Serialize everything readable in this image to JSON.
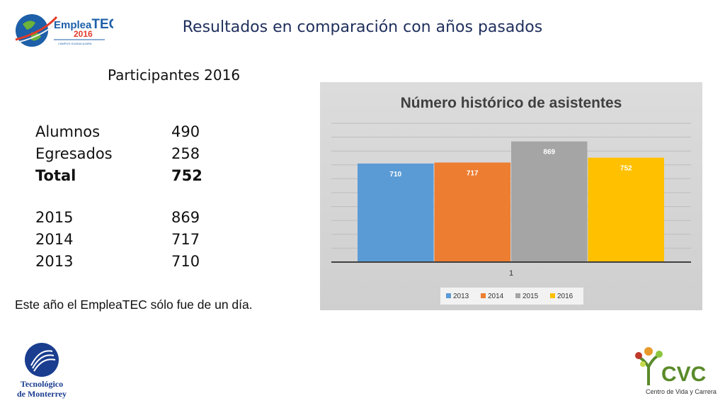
{
  "slide": {
    "title": "Resultados en comparación con años pasados",
    "subtitle": "Participantes 2016",
    "stats": [
      {
        "label": "Alumnos",
        "value": "490",
        "bold": false
      },
      {
        "label": "Egresados",
        "value": "258",
        "bold": false
      },
      {
        "label": "Total",
        "value": "752",
        "bold": true
      }
    ],
    "history": [
      {
        "label": "2015",
        "value": "869"
      },
      {
        "label": "2014",
        "value": "717"
      },
      {
        "label": "2013",
        "value": "710"
      }
    ],
    "note": "Este año el EmpleaTEC sólo fue de un día."
  },
  "logos": {
    "emplea_text": "Emplea",
    "tec_text": "TEC",
    "year_text": "2016",
    "campus_text": "CAMPUS GUADALAJARA",
    "tec_line1": "Tecnológico",
    "tec_line2": "de Monterrey",
    "cvc_text": "CVC",
    "cvc_sub": "Centro de Vida y Carrera"
  },
  "chart_data": {
    "type": "bar",
    "title": "Número histórico de asistentes",
    "categories": [
      "1"
    ],
    "series": [
      {
        "name": "2013",
        "values": [
          710
        ],
        "color": "#5b9bd5"
      },
      {
        "name": "2014",
        "values": [
          717
        ],
        "color": "#ed7d31"
      },
      {
        "name": "2015",
        "values": [
          869
        ],
        "color": "#a5a5a5"
      },
      {
        "name": "2016",
        "values": [
          752
        ],
        "color": "#ffc000"
      }
    ],
    "ylim": [
      0,
      1000
    ],
    "grid": true,
    "legend": "bottom"
  }
}
